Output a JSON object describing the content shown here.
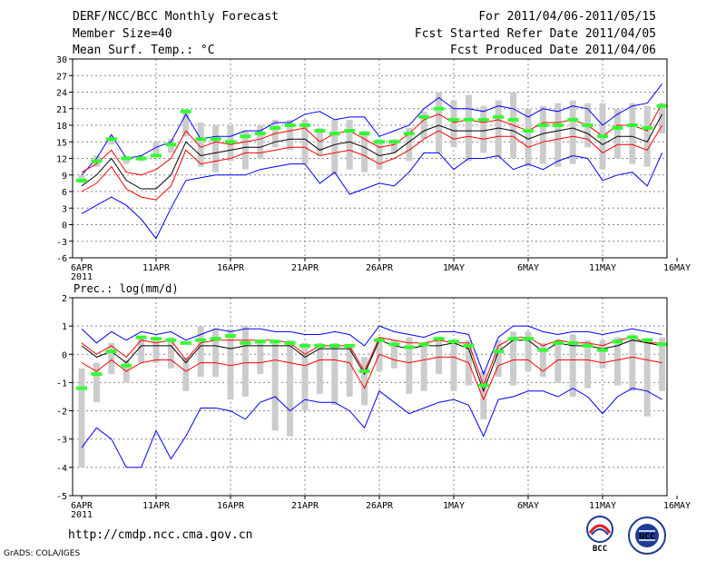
{
  "header": {
    "title": "DERF/NCC/BCC Monthly Forecast",
    "member_size": "Member Size=40",
    "variable": "Mean Surf. Temp.: °C",
    "period": "For 2011/04/06-2011/05/15",
    "refer_date": "Fcst Started Refer Date 2011/04/05",
    "produced_date": "Fcst Produced Date 2011/04/06"
  },
  "footer": {
    "url": "http://cmdp.ncc.cma.gov.cn",
    "grads": "GrADS: COLA/IGES",
    "logo_bcc": "BCC",
    "logo_ncc": "NCC"
  },
  "colors": {
    "max_min": "#0000ff",
    "quartile": "#ff0000",
    "mean": "#000000",
    "spread": "#cccccc",
    "median": "#33ff33"
  },
  "chart_data": [
    {
      "type": "line",
      "title": "Mean Surf. Temp.: °C",
      "year_label": "2011",
      "x": [
        "6APR",
        "7APR",
        "8APR",
        "9APR",
        "10APR",
        "11APR",
        "12APR",
        "13APR",
        "14APR",
        "15APR",
        "16APR",
        "17APR",
        "18APR",
        "19APR",
        "20APR",
        "21APR",
        "22APR",
        "23APR",
        "24APR",
        "25APR",
        "26APR",
        "27APR",
        "28APR",
        "29APR",
        "30APR",
        "1MAY",
        "2MAY",
        "3MAY",
        "4MAY",
        "5MAY",
        "6MAY",
        "7MAY",
        "8MAY",
        "9MAY",
        "10MAY",
        "11MAY",
        "12MAY",
        "13MAY",
        "14MAY",
        "15MAY"
      ],
      "xticks": [
        "6APR",
        "11APR",
        "16APR",
        "21APR",
        "26APR",
        "1MAY",
        "6MAY",
        "11MAY",
        "16MAY"
      ],
      "ylim": [
        -6,
        30
      ],
      "yticks": [
        -6,
        -3,
        0,
        3,
        6,
        9,
        12,
        15,
        18,
        21,
        24,
        27,
        30
      ],
      "series": [
        {
          "name": "max",
          "values": [
            9.0,
            12.0,
            16.3,
            12.0,
            12.5,
            14.0,
            15.0,
            20.0,
            15.5,
            16.0,
            16.0,
            17.0,
            17.0,
            18.5,
            18.5,
            20.0,
            20.5,
            19.0,
            19.5,
            19.5,
            16.0,
            17.0,
            18.0,
            21.0,
            23.0,
            21.0,
            21.0,
            20.5,
            21.5,
            21.0,
            19.5,
            21.0,
            20.5,
            21.5,
            21.0,
            18.0,
            20.0,
            21.5,
            22.0,
            25.5
          ]
        },
        {
          "name": "upper_quartile",
          "values": [
            9.5,
            11.0,
            13.5,
            9.5,
            9.0,
            10.0,
            12.0,
            17.0,
            14.0,
            15.0,
            14.5,
            15.0,
            15.5,
            16.5,
            17.0,
            17.5,
            15.0,
            16.5,
            17.0,
            15.5,
            14.0,
            14.5,
            16.5,
            19.0,
            20.0,
            18.5,
            19.0,
            18.5,
            19.0,
            18.0,
            17.0,
            18.5,
            18.5,
            19.0,
            18.0,
            16.0,
            18.0,
            18.0,
            17.0,
            22.0
          ]
        },
        {
          "name": "mean",
          "values": [
            7.0,
            9.0,
            12.0,
            8.0,
            6.5,
            6.5,
            9.0,
            15.0,
            12.5,
            13.0,
            13.5,
            14.0,
            14.0,
            15.0,
            15.5,
            15.5,
            13.5,
            14.5,
            15.0,
            14.0,
            12.5,
            13.0,
            15.0,
            17.0,
            18.0,
            17.0,
            17.0,
            17.0,
            17.5,
            17.0,
            15.5,
            16.5,
            17.0,
            17.5,
            16.5,
            14.5,
            16.0,
            16.0,
            15.0,
            20.0
          ]
        },
        {
          "name": "lower_quartile",
          "values": [
            6.0,
            7.5,
            10.5,
            6.5,
            5.0,
            4.5,
            7.0,
            13.5,
            11.0,
            11.5,
            12.0,
            13.0,
            13.0,
            13.5,
            14.0,
            14.0,
            12.5,
            13.0,
            13.5,
            12.5,
            11.0,
            12.0,
            13.5,
            15.5,
            17.0,
            15.5,
            16.0,
            15.5,
            16.0,
            16.0,
            14.0,
            15.0,
            15.5,
            16.0,
            15.5,
            13.0,
            14.5,
            14.5,
            13.5,
            18.0
          ]
        },
        {
          "name": "min",
          "values": [
            2.0,
            3.5,
            5.0,
            3.5,
            1.0,
            -2.5,
            3.0,
            8.0,
            8.5,
            9.0,
            9.0,
            9.0,
            10.0,
            10.5,
            11.0,
            11.0,
            7.5,
            9.5,
            5.5,
            6.5,
            7.5,
            7.0,
            9.5,
            13.0,
            13.0,
            10.0,
            12.0,
            12.0,
            12.5,
            10.0,
            11.0,
            10.0,
            11.5,
            12.5,
            12.0,
            8.0,
            9.0,
            9.5,
            7.0,
            13.0
          ]
        }
      ],
      "spread": [
        [
          7.5,
          9.0
        ],
        [
          10.5,
          12.5
        ],
        [
          14.5,
          16.0
        ],
        [
          11.0,
          12.5
        ],
        [
          11.5,
          12.5
        ],
        [
          12.5,
          15.0
        ],
        [
          13.0,
          15.5
        ],
        [
          16.0,
          21.0
        ],
        [
          10.5,
          18.5
        ],
        [
          9.5,
          18.0
        ],
        [
          11.5,
          18.0
        ],
        [
          10.0,
          17.0
        ],
        [
          12.0,
          18.0
        ],
        [
          14.0,
          19.0
        ],
        [
          13.5,
          19.0
        ],
        [
          11.0,
          19.0
        ],
        [
          12.5,
          17.5
        ],
        [
          9.0,
          19.0
        ],
        [
          10.0,
          19.0
        ],
        [
          9.5,
          17.0
        ],
        [
          10.0,
          15.5
        ],
        [
          13.0,
          15.5
        ],
        [
          11.5,
          17.5
        ],
        [
          15.5,
          20.5
        ],
        [
          13.0,
          24.0
        ],
        [
          14.0,
          22.5
        ],
        [
          11.5,
          23.5
        ],
        [
          13.0,
          21.5
        ],
        [
          12.0,
          22.5
        ],
        [
          12.0,
          24.0
        ],
        [
          10.5,
          21.0
        ],
        [
          11.0,
          21.5
        ],
        [
          10.5,
          22.0
        ],
        [
          11.0,
          22.5
        ],
        [
          14.0,
          22.0
        ],
        [
          10.0,
          22.0
        ],
        [
          12.0,
          21.0
        ],
        [
          11.0,
          22.0
        ],
        [
          10.5,
          21.5
        ],
        [
          16.5,
          22.0
        ]
      ],
      "median": [
        8.0,
        11.5,
        15.5,
        12.0,
        12.0,
        12.5,
        14.5,
        20.5,
        15.5,
        15.5,
        15.0,
        16.0,
        16.5,
        17.5,
        18.0,
        18.0,
        17.0,
        16.5,
        17.0,
        16.5,
        15.0,
        15.0,
        16.5,
        19.5,
        21.0,
        19.0,
        19.0,
        19.0,
        19.5,
        19.0,
        17.0,
        18.0,
        18.0,
        19.0,
        18.0,
        16.0,
        17.5,
        18.0,
        17.5,
        21.5
      ]
    },
    {
      "type": "line",
      "title": "Prec.: log(mm/d)",
      "year_label": "2011",
      "x": [
        "6APR",
        "7APR",
        "8APR",
        "9APR",
        "10APR",
        "11APR",
        "12APR",
        "13APR",
        "14APR",
        "15APR",
        "16APR",
        "17APR",
        "18APR",
        "19APR",
        "20APR",
        "21APR",
        "22APR",
        "23APR",
        "24APR",
        "25APR",
        "26APR",
        "27APR",
        "28APR",
        "29APR",
        "30APR",
        "1MAY",
        "2MAY",
        "3MAY",
        "4MAY",
        "5MAY",
        "6MAY",
        "7MAY",
        "8MAY",
        "9MAY",
        "10MAY",
        "11MAY",
        "12MAY",
        "13MAY",
        "14MAY",
        "15MAY"
      ],
      "xticks": [
        "6APR",
        "11APR",
        "16APR",
        "21APR",
        "26APR",
        "1MAY",
        "6MAY",
        "11MAY",
        "16MAY"
      ],
      "ylim": [
        -5,
        2
      ],
      "yticks": [
        -5,
        -4,
        -3,
        -2,
        -1,
        0,
        1,
        2
      ],
      "series": [
        {
          "name": "max",
          "values": [
            0.9,
            0.4,
            0.8,
            0.5,
            0.8,
            0.7,
            0.8,
            0.5,
            0.7,
            0.9,
            0.8,
            0.9,
            0.9,
            0.8,
            0.8,
            0.7,
            0.7,
            0.8,
            0.7,
            0.3,
            1.0,
            0.8,
            0.7,
            0.6,
            0.8,
            0.8,
            0.7,
            -0.7,
            0.6,
            1.0,
            1.0,
            0.8,
            0.7,
            0.8,
            0.8,
            0.7,
            0.8,
            0.9,
            0.8,
            0.7
          ]
        },
        {
          "name": "upper_quartile",
          "values": [
            0.4,
            0.0,
            0.3,
            -0.1,
            0.5,
            0.4,
            0.5,
            -0.2,
            0.4,
            0.5,
            0.5,
            0.5,
            0.5,
            0.5,
            0.4,
            0.0,
            0.3,
            0.3,
            0.3,
            -0.6,
            0.6,
            0.5,
            0.4,
            0.4,
            0.5,
            0.4,
            0.4,
            -1.1,
            0.3,
            0.6,
            0.6,
            0.3,
            0.5,
            0.4,
            0.4,
            0.3,
            0.5,
            0.6,
            0.4,
            0.4
          ]
        },
        {
          "name": "mean",
          "values": [
            0.3,
            -0.1,
            0.1,
            -0.3,
            0.3,
            0.3,
            0.3,
            -0.3,
            0.3,
            0.3,
            0.2,
            0.3,
            0.3,
            0.3,
            0.3,
            -0.1,
            0.2,
            0.2,
            0.2,
            -0.7,
            0.5,
            0.3,
            0.2,
            0.3,
            0.3,
            0.4,
            0.2,
            -1.3,
            0.1,
            0.5,
            0.5,
            0.1,
            0.4,
            0.3,
            0.3,
            0.2,
            0.3,
            0.5,
            0.4,
            0.3
          ]
        },
        {
          "name": "lower_quartile",
          "values": [
            -0.3,
            -0.6,
            -0.2,
            -0.6,
            -0.3,
            -0.2,
            -0.2,
            -0.6,
            -0.3,
            -0.3,
            -0.4,
            -0.3,
            -0.3,
            -0.2,
            -0.3,
            -0.4,
            -0.2,
            -0.2,
            -0.3,
            -1.2,
            0.0,
            -0.2,
            -0.3,
            -0.2,
            -0.1,
            -0.1,
            -0.3,
            -1.6,
            -0.4,
            -0.2,
            -0.2,
            -0.6,
            -0.2,
            -0.2,
            -0.2,
            -0.3,
            -0.2,
            -0.1,
            -0.2,
            -0.3
          ]
        },
        {
          "name": "min",
          "values": [
            -3.3,
            -2.6,
            -3.0,
            -4.0,
            -4.0,
            -2.7,
            -3.7,
            -2.9,
            -1.9,
            -1.9,
            -2.0,
            -2.3,
            -1.7,
            -1.5,
            -2.0,
            -1.6,
            -1.7,
            -1.7,
            -2.0,
            -2.6,
            -1.3,
            -1.7,
            -2.1,
            -1.9,
            -1.7,
            -1.6,
            -1.8,
            -2.9,
            -1.6,
            -1.5,
            -1.3,
            -1.3,
            -1.5,
            -1.2,
            -1.5,
            -2.1,
            -1.5,
            -1.2,
            -1.3,
            -1.6
          ]
        }
      ],
      "spread": [
        [
          -4.0,
          -0.5
        ],
        [
          -1.7,
          -0.3
        ],
        [
          -0.7,
          0.4
        ],
        [
          -1.0,
          -0.2
        ],
        [
          -0.3,
          0.6
        ],
        [
          -0.3,
          0.5
        ],
        [
          -0.5,
          0.6
        ],
        [
          -1.3,
          -0.1
        ],
        [
          -0.8,
          1.0
        ],
        [
          -0.8,
          0.9
        ],
        [
          -1.6,
          0.9
        ],
        [
          -1.5,
          1.0
        ],
        [
          -0.7,
          0.5
        ],
        [
          -2.7,
          0.5
        ],
        [
          -2.9,
          0.5
        ],
        [
          -2.0,
          0.4
        ],
        [
          -1.4,
          0.4
        ],
        [
          -1.8,
          0.4
        ],
        [
          -1.5,
          0.3
        ],
        [
          -1.8,
          -0.1
        ],
        [
          -0.6,
          0.6
        ],
        [
          -0.5,
          0.5
        ],
        [
          -1.4,
          0.6
        ],
        [
          -1.3,
          0.4
        ],
        [
          -0.7,
          0.5
        ],
        [
          -1.3,
          0.5
        ],
        [
          -1.1,
          0.5
        ],
        [
          -2.3,
          -0.6
        ],
        [
          -0.8,
          0.5
        ],
        [
          -1.1,
          0.8
        ],
        [
          -0.6,
          0.8
        ],
        [
          -0.8,
          0.4
        ],
        [
          -1.0,
          0.5
        ],
        [
          -1.5,
          0.7
        ],
        [
          -1.2,
          0.5
        ],
        [
          -0.5,
          0.5
        ],
        [
          -1.1,
          0.6
        ],
        [
          -1.3,
          0.7
        ],
        [
          -2.2,
          0.5
        ],
        [
          -1.3,
          0.6
        ]
      ],
      "median": [
        -1.2,
        -0.7,
        0.1,
        -0.4,
        0.6,
        0.55,
        0.5,
        0.4,
        0.5,
        0.55,
        0.65,
        0.4,
        0.45,
        0.45,
        0.4,
        0.3,
        0.3,
        0.3,
        0.3,
        -0.6,
        0.5,
        0.35,
        0.25,
        0.35,
        0.55,
        0.45,
        0.3,
        -1.1,
        0.1,
        0.55,
        0.55,
        0.15,
        0.4,
        0.4,
        0.3,
        0.15,
        0.45,
        0.6,
        0.5,
        0.35
      ]
    }
  ]
}
